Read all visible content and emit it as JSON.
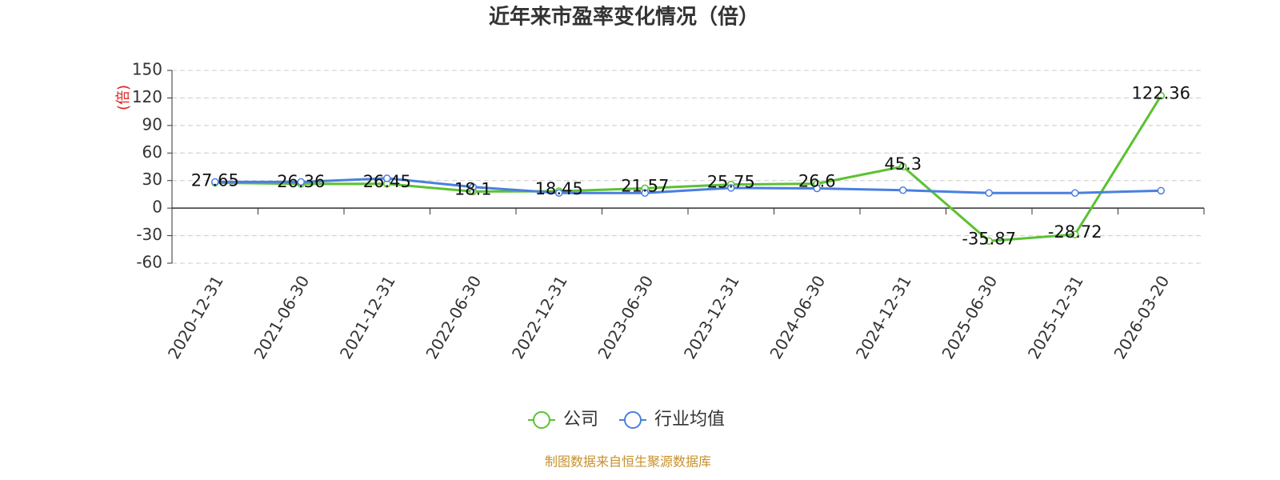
{
  "chart_data": {
    "type": "line",
    "title": "近年来市盈率变化情况（倍）",
    "y_label": "(倍)",
    "categories": [
      "2020-12-31",
      "2021-06-30",
      "2021-12-31",
      "2022-06-30",
      "2022-12-31",
      "2023-06-30",
      "2023-12-31",
      "2024-06-30",
      "2024-12-31",
      "2025-06-30",
      "2025-12-31",
      "2026-03-20"
    ],
    "series": [
      {
        "name": "公司",
        "color": "#5bc232",
        "values": [
          27.65,
          26.36,
          26.45,
          18.1,
          18.45,
          21.57,
          25.75,
          26.6,
          45.3,
          -35.87,
          -28.72,
          122.36
        ],
        "show_labels": true
      },
      {
        "name": "行业均值",
        "color": "#4a7fe0",
        "values": [
          28.5,
          28.5,
          32.5,
          23,
          16.5,
          16.5,
          22,
          21.5,
          19.5,
          16.5,
          16.5,
          19
        ],
        "show_labels": false
      }
    ],
    "ylim": [
      -60,
      150
    ],
    "yticks": [
      -60,
      -30,
      0,
      30,
      60,
      90,
      120,
      150
    ],
    "grid": true,
    "source": "制图数据来自恒生聚源数据库"
  }
}
